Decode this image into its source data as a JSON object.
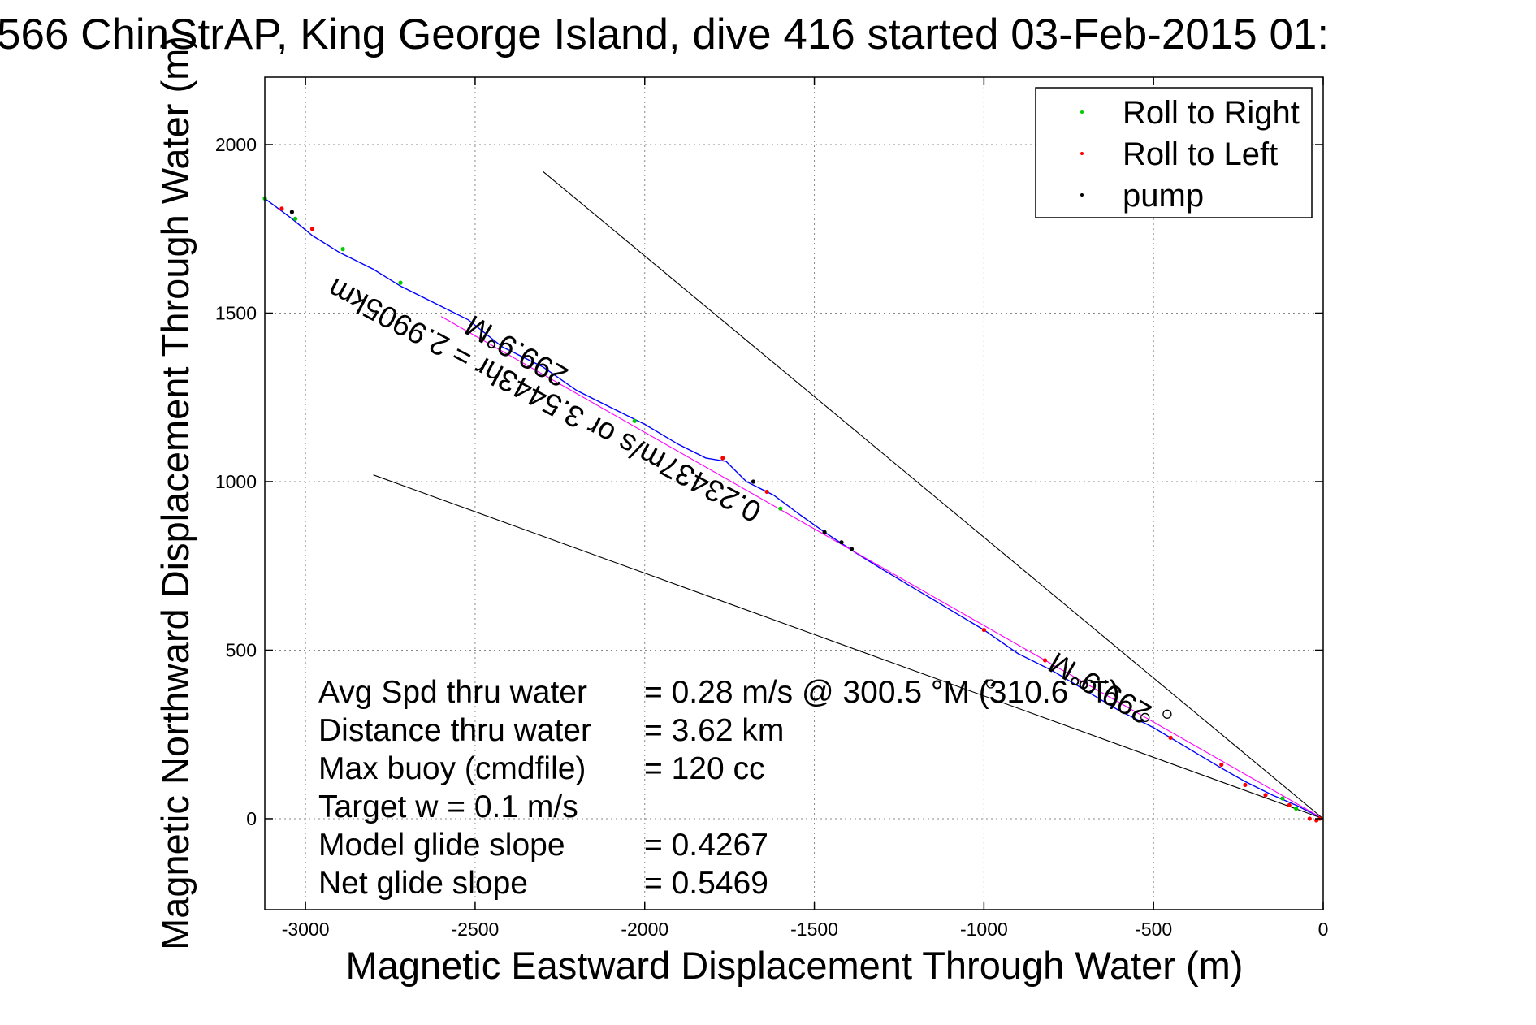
{
  "chart_data": {
    "type": "line",
    "title": "566 ChinStrAP, King George Island, dive 416 started 03-Feb-2015 01:",
    "xlabel": "Magnetic Eastward Displacement Through Water (m)",
    "ylabel": "Magnetic Northward Displacement Through Water (m)",
    "xlim": [
      -3120,
      0
    ],
    "ylim": [
      -270,
      2200
    ],
    "xticks": [
      -3000,
      -2500,
      -2000,
      -1500,
      -1000,
      -500,
      0
    ],
    "yticks": [
      0,
      500,
      1000,
      1500,
      2000
    ],
    "xtick_labels": [
      "-3000",
      "-2500",
      "-2000",
      "-1500",
      "-1000",
      "-500",
      "0"
    ],
    "ytick_labels": [
      "0",
      "500",
      "1000",
      "1500",
      "2000"
    ],
    "grid": "dotted",
    "legend": {
      "position": "top-right",
      "entries": [
        {
          "label": "Roll to Right",
          "color": "#00cc00"
        },
        {
          "label": "Roll to Left",
          "color": "#ff0000"
        },
        {
          "label": "pump",
          "color": "#000000"
        }
      ]
    },
    "series": [
      {
        "kind": "track",
        "color": "#0000ff",
        "x": [
          -3120,
          -3040,
          -2980,
          -2900,
          -2800,
          -2720,
          -2620,
          -2520,
          -2420,
          -2300,
          -2200,
          -2100,
          -2000,
          -1900,
          -1820,
          -1760,
          -1700,
          -1620,
          -1540,
          -1470,
          -1380,
          -1300,
          -1200,
          -1100,
          -1000,
          -900,
          -800,
          -700,
          -600,
          -500,
          -400,
          -300,
          -230,
          -150,
          -80,
          -40,
          -10,
          0
        ],
        "y": [
          1840,
          1780,
          1730,
          1680,
          1630,
          1580,
          1530,
          1480,
          1400,
          1340,
          1270,
          1220,
          1170,
          1110,
          1070,
          1060,
          1000,
          960,
          900,
          850,
          790,
          740,
          680,
          620,
          560,
          490,
          440,
          380,
          320,
          270,
          210,
          150,
          110,
          70,
          40,
          20,
          5,
          0
        ]
      },
      {
        "kind": "heading-line",
        "color": "#ff00ff",
        "x": [
          -2600,
          0
        ],
        "y": [
          1490,
          0
        ]
      },
      {
        "kind": "reference-line",
        "color": "#000000",
        "x": [
          -2300,
          0
        ],
        "y": [
          1920,
          0
        ]
      },
      {
        "kind": "reference-line",
        "color": "#000000",
        "x": [
          -2800,
          0
        ],
        "y": [
          1020,
          0
        ]
      },
      {
        "kind": "roll-to-right",
        "color": "#00cc00",
        "x": [
          -3120,
          -3030,
          -2890,
          -2720,
          -2030,
          -1600,
          -120,
          -80
        ],
        "y": [
          1840,
          1780,
          1690,
          1590,
          1180,
          920,
          60,
          30
        ]
      },
      {
        "kind": "roll-to-left",
        "color": "#ff0000",
        "x": [
          -3070,
          -2980,
          -1770,
          -1640,
          -1000,
          -820,
          -450,
          -300,
          -230,
          -170,
          -100,
          -40,
          -20,
          -10
        ],
        "y": [
          1810,
          1750,
          1070,
          970,
          560,
          470,
          240,
          160,
          100,
          70,
          40,
          0,
          -5,
          0
        ]
      },
      {
        "kind": "pump",
        "color": "#000000",
        "x": [
          -3040,
          -1680,
          -1470,
          -1420,
          -1390
        ],
        "y": [
          1800,
          1000,
          850,
          820,
          800
        ]
      }
    ],
    "markers": [
      {
        "symbol": "circle",
        "x": -980,
        "y": 400
      },
      {
        "symbol": "circle",
        "x": -525,
        "y": 300
      },
      {
        "symbol": "circle",
        "x": -460,
        "y": 310
      }
    ],
    "annotations": [
      {
        "text": "299.9°M",
        "x": -2220,
        "y": 1330,
        "angle_deg": 210
      },
      {
        "text": "0.23437m/s or 3.5443hr = 2.9905km",
        "x": -1650,
        "y": 930,
        "angle_deg": 208
      },
      {
        "text": "299.9°M",
        "x": -500,
        "y": 330,
        "angle_deg": 210
      }
    ],
    "stats": [
      {
        "label": "Avg Spd thru water",
        "value": "=  0.28 m/s @ 300.5  °M (310.6  °T)"
      },
      {
        "label": "Distance thru water",
        "value": "=  3.62 km"
      },
      {
        "label": "Max buoy (cmdfile)",
        "value": "= 120 cc"
      },
      {
        "label": "Target w    = 0.1 m/s",
        "value": ""
      },
      {
        "label": "Model glide slope",
        "value": "= 0.4267"
      },
      {
        "label": "Net glide slope",
        "value": "= 0.5469"
      }
    ]
  }
}
